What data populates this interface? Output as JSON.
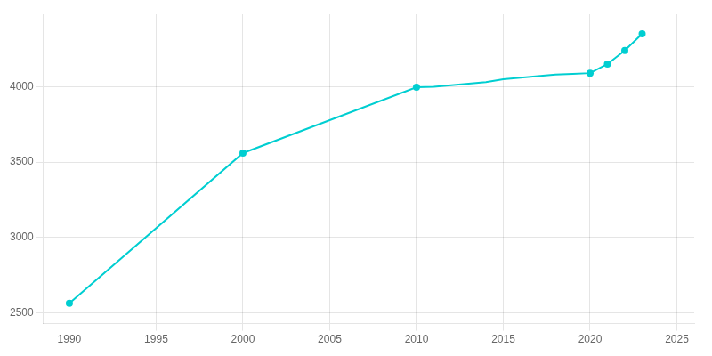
{
  "chart_data": {
    "type": "line",
    "x": [
      1990,
      2000,
      2010,
      2011,
      2012,
      2013,
      2014,
      2015,
      2016,
      2017,
      2018,
      2019,
      2020,
      2021,
      2022,
      2023
    ],
    "series": [
      {
        "color": "#00CED1",
        "marker": "none",
        "line_style": "solid",
        "values": [
          2565,
          3560,
          3996,
          4000,
          4010,
          4020,
          4030,
          4050,
          4060,
          4070,
          4080,
          4085,
          4090,
          4150,
          4240,
          4350
        ]
      },
      {
        "color": "#00CED1",
        "marker": "circle",
        "line_style": "none",
        "values": [
          2565,
          3560,
          3996,
          null,
          null,
          null,
          null,
          null,
          null,
          null,
          null,
          null,
          4090,
          4150,
          4240,
          4350
        ]
      }
    ],
    "xlim": [
      1988.5,
      2026
    ],
    "xticks": [
      1990,
      1995,
      2000,
      2005,
      2010,
      2015,
      2020,
      2025
    ],
    "ylim": [
      2430,
      4480
    ],
    "yticks": [
      2500,
      3000,
      3500,
      4000
    ],
    "grid": true
  }
}
